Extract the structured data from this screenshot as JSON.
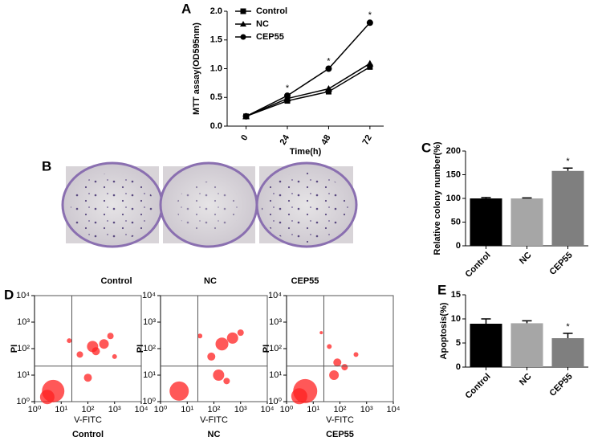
{
  "chart_data": [
    {
      "type": "line",
      "panel": "A",
      "xlabel": "Time(h)",
      "ylabel": "MTT assay(OD595nm)",
      "x": [
        0,
        24,
        48,
        72
      ],
      "xlim": [
        -11,
        80
      ],
      "xticks": [
        0,
        24,
        48,
        72
      ],
      "ylim": [
        0,
        2
      ],
      "yticks": [
        {
          "value": 0,
          "label": "0.0"
        },
        0.5,
        {
          "value": 1,
          "label": "1.0"
        },
        1.5,
        {
          "value": 2,
          "label": "2.0"
        }
      ],
      "legend": "upper left",
      "series": [
        {
          "name": "Control",
          "color": "#000000",
          "marker": "square",
          "values": [
            0.17,
            0.44,
            0.6,
            1.03
          ]
        },
        {
          "name": "NC",
          "color": "#000000",
          "marker": "triangle",
          "values": [
            0.17,
            0.48,
            0.65,
            1.09
          ]
        },
        {
          "name": "CEP55",
          "color": "#000000",
          "marker": "circle",
          "values": [
            0.17,
            0.53,
            1.0,
            1.8
          ]
        }
      ],
      "annotations": [
        {
          "text": "*",
          "x": 24,
          "y": 0.53
        },
        {
          "text": "*",
          "x": 48,
          "y": 1.0
        },
        {
          "text": "*",
          "x": 72,
          "y": 1.8
        }
      ]
    },
    {
      "type": "bar",
      "panel": "C",
      "ylabel": "Relative colony number(%)",
      "categories": [
        "Control",
        "NC",
        "CEP55"
      ],
      "values": [
        100,
        100,
        158
      ],
      "errors": [
        2,
        1,
        6
      ],
      "colors": [
        "#000000",
        "#a6a6a6",
        "#7f7f7f"
      ],
      "ylim": [
        0,
        200
      ],
      "yticks": [
        0,
        50,
        100,
        150,
        200
      ],
      "annotations": [
        {
          "text": "*",
          "x": "CEP55"
        }
      ]
    },
    {
      "type": "scatter",
      "panel": "D",
      "caption": "Control",
      "xlabel": "V-FITC",
      "ylabel": "PI",
      "log": true,
      "color": "#ff2020",
      "xlim": [
        1,
        10000
      ],
      "ylim": [
        1,
        10000
      ],
      "xticks": [
        {
          "value": 1,
          "label": "10⁰"
        },
        {
          "value": 10,
          "label": "10¹"
        },
        {
          "value": 100,
          "label": "10²"
        },
        {
          "value": 1000,
          "label": "10³"
        },
        {
          "value": 10000,
          "label": "10⁴"
        }
      ],
      "yticks": [
        {
          "value": 1,
          "label": "10⁰"
        },
        {
          "value": 10,
          "label": "10¹"
        },
        {
          "value": 100,
          "label": "10²"
        },
        {
          "value": 1000,
          "label": "10³"
        },
        {
          "value": 10000,
          "label": "10⁴"
        }
      ],
      "gate": {
        "x": 25,
        "y": 22
      },
      "x": [
        5,
        3,
        150,
        400,
        100,
        200,
        700,
        50,
        1000,
        20
      ],
      "y": [
        2.5,
        1.5,
        120,
        150,
        8,
        80,
        300,
        60,
        50,
        200
      ],
      "sizes": [
        14,
        9,
        7,
        6,
        5,
        5,
        4,
        4,
        3,
        3
      ]
    },
    {
      "type": "scatter",
      "caption": "NC",
      "xlabel": "V-FITC",
      "ylabel": "PI",
      "log": true,
      "color": "#ff2020",
      "xlim": [
        1,
        10000
      ],
      "ylim": [
        1,
        10000
      ],
      "xticks": [
        {
          "value": 1,
          "label": "10⁰"
        },
        {
          "value": 10,
          "label": "10¹"
        },
        {
          "value": 100,
          "label": "10²"
        },
        {
          "value": 1000,
          "label": "10³"
        },
        {
          "value": 10000,
          "label": "10⁴"
        }
      ],
      "yticks": [
        {
          "value": 1,
          "label": "10⁰"
        },
        {
          "value": 10,
          "label": "10¹"
        },
        {
          "value": 100,
          "label": "10²"
        },
        {
          "value": 1000,
          "label": "10³"
        },
        {
          "value": 10000,
          "label": "10⁴"
        }
      ],
      "gate": {
        "x": 25,
        "y": 22
      },
      "x": [
        5,
        200,
        500,
        150,
        80,
        1000,
        300,
        30
      ],
      "y": [
        2.5,
        150,
        250,
        10,
        50,
        400,
        6,
        300
      ],
      "sizes": [
        12,
        8,
        7,
        7,
        5,
        4,
        4,
        3
      ]
    },
    {
      "type": "scatter",
      "caption": "CEP55",
      "xlabel": "V-FITC",
      "ylabel": "PI",
      "log": true,
      "color": "#ff2020",
      "xlim": [
        1,
        10000
      ],
      "ylim": [
        1,
        10000
      ],
      "xticks": [
        {
          "value": 1,
          "label": "10⁰"
        },
        {
          "value": 10,
          "label": "10¹"
        },
        {
          "value": 100,
          "label": "10²"
        },
        {
          "value": 1000,
          "label": "10³"
        },
        {
          "value": 10000,
          "label": "10⁴"
        }
      ],
      "yticks": [
        {
          "value": 1,
          "label": "10⁰"
        },
        {
          "value": 10,
          "label": "10¹"
        },
        {
          "value": 100,
          "label": "10²"
        },
        {
          "value": 1000,
          "label": "10³"
        },
        {
          "value": 10000,
          "label": "10⁴"
        }
      ],
      "gate": {
        "x": 25,
        "y": 22
      },
      "x": [
        5,
        3,
        80,
        60,
        150,
        40,
        400,
        20
      ],
      "y": [
        2.5,
        1.6,
        30,
        10,
        20,
        120,
        60,
        400
      ],
      "sizes": [
        15,
        10,
        5,
        6,
        4,
        3,
        3,
        2
      ]
    },
    {
      "type": "bar",
      "panel": "E",
      "ylabel": "Apoptosis(%)",
      "categories": [
        "Control",
        "NC",
        "CEP55"
      ],
      "values": [
        9.0,
        9.1,
        6.0
      ],
      "errors": [
        1.0,
        0.5,
        1.0
      ],
      "colors": [
        "#000000",
        "#a6a6a6",
        "#7f7f7f"
      ],
      "ylim": [
        0,
        15
      ],
      "yticks": [
        0,
        5,
        10,
        15
      ],
      "annotations": [
        {
          "text": "*",
          "x": "CEP55"
        }
      ]
    }
  ],
  "photo_panel": {
    "panel": "B",
    "captions": [
      "Control",
      "NC",
      "CEP55"
    ]
  }
}
